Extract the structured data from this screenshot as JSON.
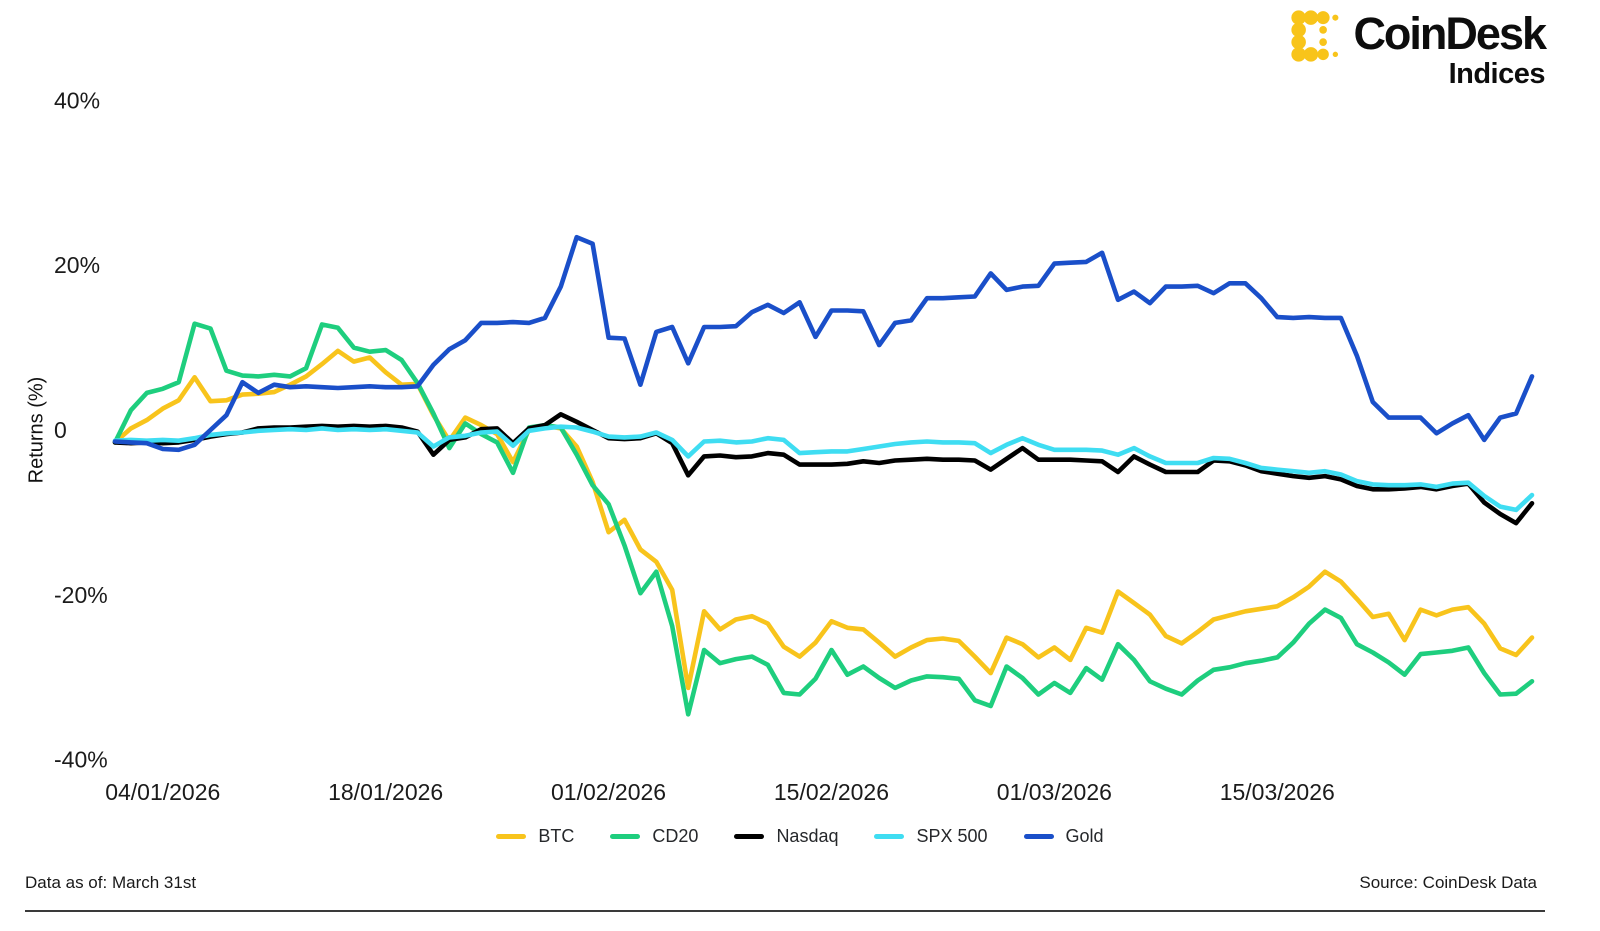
{
  "header": {
    "brand": "CoinDesk",
    "brand_sub": "Indices"
  },
  "footer": {
    "data_as_of_label": "Data as of:",
    "data_as_of_value": "March 31st",
    "source": "Source: CoinDesk Data"
  },
  "chart_data": {
    "type": "line",
    "title": "",
    "xlabel": "",
    "ylabel": "Returns (%)",
    "ylim": [
      -45,
      45
    ],
    "grid": false,
    "legend_position": "bottom",
    "x_start": "01/01/2026",
    "x_end": "31/03/2026",
    "n_points": 90,
    "yticks": [
      {
        "value": 40,
        "label": "40%"
      },
      {
        "value": 20,
        "label": "20%"
      },
      {
        "value": 0,
        "label": "0"
      },
      {
        "value": -20,
        "label": "-20%"
      },
      {
        "value": -40,
        "label": "-40%"
      }
    ],
    "xticks": [
      {
        "day": 3,
        "label": "04/01/2026"
      },
      {
        "day": 17,
        "label": "18/01/2026"
      },
      {
        "day": 31,
        "label": "01/02/2026"
      },
      {
        "day": 45,
        "label": "15/02/2026"
      },
      {
        "day": 59,
        "label": "01/03/2026"
      },
      {
        "day": 73,
        "label": "15/03/2026"
      }
    ],
    "series": [
      {
        "name": "BTC",
        "color": "#F8C41C",
        "values": [
          -1.5,
          0.2,
          1.2,
          2.6,
          3.6,
          6.4,
          3.5,
          3.6,
          4.3,
          4.4,
          4.6,
          5.5,
          6.5,
          8.0,
          9.6,
          8.3,
          8.8,
          7.0,
          5.5,
          5.6,
          1.8,
          -1.3,
          1.5,
          0.6,
          -0.5,
          -3.9,
          0.0,
          0.5,
          0.2,
          -2.0,
          -6.3,
          -12.4,
          -10.9,
          -14.5,
          -16.0,
          -19.4,
          -31.3,
          -22.0,
          -24.2,
          -23.0,
          -22.6,
          -23.5,
          -26.3,
          -27.5,
          -25.8,
          -23.2,
          -24.0,
          -24.2,
          -25.8,
          -27.5,
          -26.4,
          -25.5,
          -25.3,
          -25.6,
          -27.5,
          -29.5,
          -25.2,
          -26.0,
          -27.6,
          -26.4,
          -27.9,
          -24.0,
          -24.6,
          -19.6,
          -21.0,
          -22.4,
          -25.0,
          -25.9,
          -24.5,
          -23.0,
          -22.5,
          -22.0,
          -21.7,
          -21.4,
          -20.3,
          -19.0,
          -17.2,
          -18.4,
          -20.5,
          -22.7,
          -22.3,
          -25.5,
          -21.8,
          -22.5,
          -21.8,
          -21.5,
          -23.5,
          -26.5,
          -27.3,
          -25.2
        ]
      },
      {
        "name": "CD20",
        "color": "#1ECE7E",
        "values": [
          -1.5,
          2.4,
          4.5,
          5.0,
          5.8,
          12.9,
          12.3,
          7.2,
          6.6,
          6.5,
          6.7,
          6.5,
          7.5,
          12.8,
          12.4,
          10.0,
          9.5,
          9.7,
          8.5,
          5.7,
          2.0,
          -2.2,
          0.8,
          -0.5,
          -1.5,
          -5.2,
          0.3,
          0.6,
          0.3,
          -3.0,
          -6.7,
          -9.0,
          -14.0,
          -19.8,
          -17.2,
          -23.8,
          -34.5,
          -26.7,
          -28.3,
          -27.8,
          -27.5,
          -28.5,
          -31.9,
          -32.1,
          -30.2,
          -26.7,
          -29.7,
          -28.7,
          -30.1,
          -31.3,
          -30.4,
          -29.9,
          -30.0,
          -30.2,
          -32.8,
          -33.5,
          -28.7,
          -30.1,
          -32.1,
          -30.7,
          -31.9,
          -28.9,
          -30.3,
          -26.0,
          -27.9,
          -30.5,
          -31.4,
          -32.1,
          -30.4,
          -29.1,
          -28.8,
          -28.3,
          -28.0,
          -27.6,
          -25.8,
          -23.5,
          -21.8,
          -22.8,
          -26.0,
          -27.0,
          -28.2,
          -29.7,
          -27.2,
          -27.0,
          -26.8,
          -26.4,
          -29.5,
          -32.1,
          -32.0,
          -30.5
        ]
      },
      {
        "name": "Nasdaq",
        "color": "#000000",
        "values": [
          -1.5,
          -1.6,
          -1.5,
          -1.6,
          -1.5,
          -1.2,
          -0.8,
          -0.5,
          -0.3,
          0.2,
          0.3,
          0.3,
          0.4,
          0.5,
          0.4,
          0.5,
          0.4,
          0.5,
          0.3,
          -0.2,
          -3.0,
          -1.2,
          -0.9,
          0.1,
          0.2,
          -1.6,
          0.2,
          0.6,
          1.9,
          1.0,
          0.0,
          -1.0,
          -1.1,
          -1.0,
          -0.4,
          -1.6,
          -5.5,
          -3.2,
          -3.1,
          -3.3,
          -3.2,
          -2.8,
          -3.0,
          -4.2,
          -4.2,
          -4.2,
          -4.1,
          -3.8,
          -4.0,
          -3.7,
          -3.6,
          -3.5,
          -3.6,
          -3.6,
          -3.7,
          -4.8,
          -3.5,
          -2.2,
          -3.6,
          -3.6,
          -3.6,
          -3.7,
          -3.8,
          -5.1,
          -3.2,
          -4.2,
          -5.1,
          -5.1,
          -5.1,
          -3.7,
          -3.8,
          -4.3,
          -5.0,
          -5.3,
          -5.6,
          -5.8,
          -5.6,
          -6.0,
          -6.8,
          -7.2,
          -7.2,
          -7.1,
          -6.9,
          -7.2,
          -6.8,
          -6.5,
          -8.8,
          -10.2,
          -11.3,
          -8.9
        ]
      },
      {
        "name": "SPX 500",
        "color": "#3FDDF2",
        "values": [
          -1.3,
          -1.2,
          -1.3,
          -1.2,
          -1.3,
          -1.0,
          -0.6,
          -0.4,
          -0.3,
          -0.1,
          0.0,
          0.1,
          0.0,
          0.2,
          0.0,
          0.1,
          0.0,
          0.1,
          -0.1,
          -0.3,
          -2.0,
          -0.9,
          -0.7,
          -0.3,
          -0.2,
          -1.9,
          -0.1,
          0.2,
          0.4,
          0.3,
          -0.2,
          -0.8,
          -0.9,
          -0.8,
          -0.3,
          -1.2,
          -3.2,
          -1.4,
          -1.3,
          -1.5,
          -1.4,
          -1.0,
          -1.2,
          -2.8,
          -2.7,
          -2.6,
          -2.6,
          -2.3,
          -2.0,
          -1.7,
          -1.5,
          -1.4,
          -1.5,
          -1.5,
          -1.6,
          -2.8,
          -1.8,
          -1.0,
          -1.8,
          -2.4,
          -2.4,
          -2.4,
          -2.5,
          -3.0,
          -2.2,
          -3.2,
          -4.0,
          -4.0,
          -4.0,
          -3.4,
          -3.5,
          -4.0,
          -4.6,
          -4.8,
          -5.0,
          -5.2,
          -5.0,
          -5.4,
          -6.2,
          -6.6,
          -6.7,
          -6.7,
          -6.6,
          -6.9,
          -6.5,
          -6.4,
          -8.0,
          -9.3,
          -9.7,
          -7.9
        ]
      },
      {
        "name": "Gold",
        "color": "#1A4FC9",
        "values": [
          -1.4,
          -1.5,
          -1.6,
          -2.3,
          -2.4,
          -1.8,
          0.0,
          1.8,
          5.8,
          4.5,
          5.5,
          5.2,
          5.3,
          5.2,
          5.1,
          5.2,
          5.3,
          5.2,
          5.2,
          5.3,
          7.9,
          9.8,
          10.9,
          13.0,
          13.0,
          13.1,
          13.0,
          13.6,
          17.4,
          23.4,
          22.6,
          11.2,
          11.1,
          5.5,
          11.9,
          12.5,
          8.1,
          12.5,
          12.5,
          12.6,
          14.3,
          15.2,
          14.2,
          15.5,
          11.3,
          14.5,
          14.5,
          14.4,
          10.3,
          13.0,
          13.3,
          16.0,
          16.0,
          16.1,
          16.2,
          19.0,
          17.0,
          17.4,
          17.5,
          20.2,
          20.3,
          20.4,
          21.5,
          15.8,
          16.8,
          15.4,
          17.4,
          17.4,
          17.5,
          16.6,
          17.8,
          17.8,
          16.0,
          13.7,
          13.6,
          13.7,
          13.6,
          13.6,
          9.0,
          3.4,
          1.5,
          1.5,
          1.5,
          -0.4,
          0.8,
          1.8,
          -1.2,
          1.5,
          2.0,
          6.5
        ]
      }
    ]
  }
}
